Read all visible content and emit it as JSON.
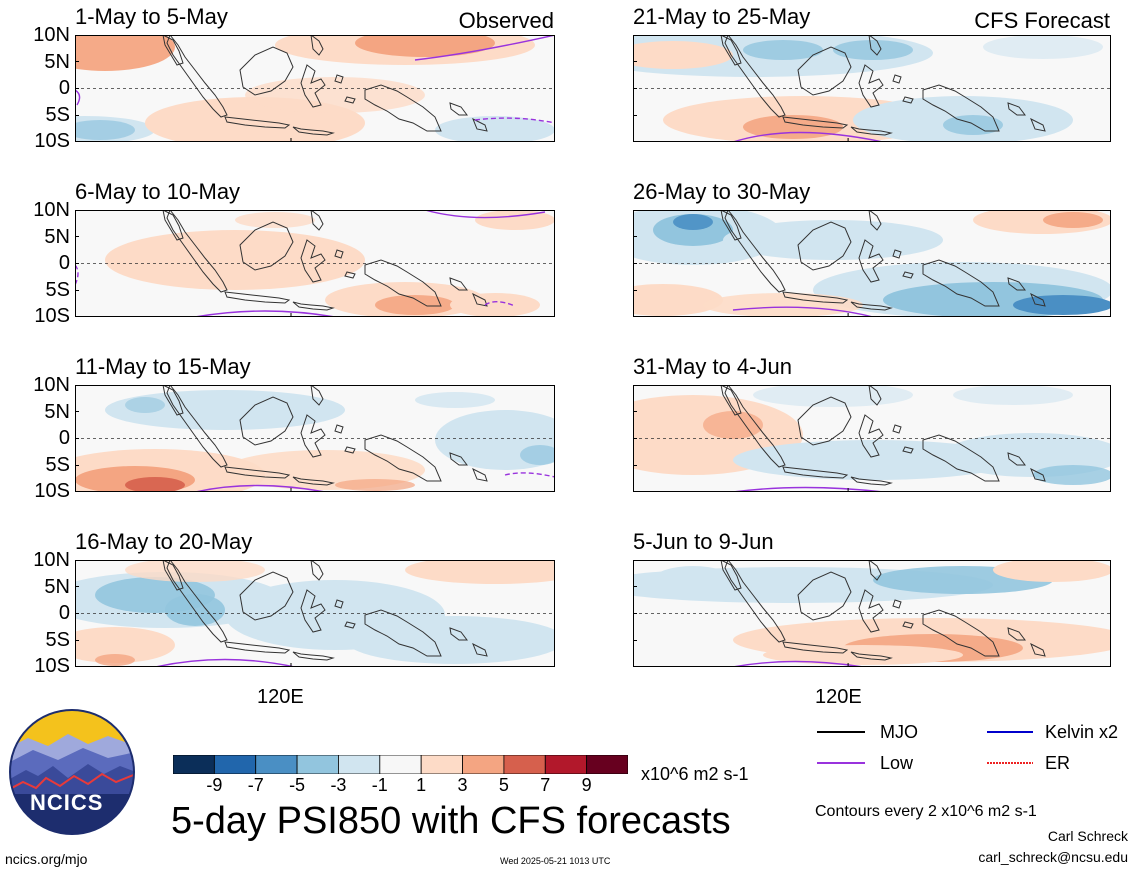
{
  "title": "5-day PSI850 with CFS forecasts",
  "observed_label": "Observed",
  "forecast_label": "CFS Forecast",
  "lat_ticks": [
    "10N",
    "5N",
    "0",
    "5S",
    "10S"
  ],
  "lon_tick": "120E",
  "panels": [
    {
      "title": "1-May to 5-May",
      "type": "observed"
    },
    {
      "title": "6-May to 10-May",
      "type": "observed"
    },
    {
      "title": "11-May to 15-May",
      "type": "observed"
    },
    {
      "title": "16-May to 20-May",
      "type": "observed"
    },
    {
      "title": "21-May to 25-May",
      "type": "forecast"
    },
    {
      "title": "26-May to 30-May",
      "type": "forecast"
    },
    {
      "title": "31-May to 4-Jun",
      "type": "forecast"
    },
    {
      "title": "5-Jun to 9-Jun",
      "type": "forecast"
    }
  ],
  "colorbar": {
    "labels": [
      "-9",
      "-7",
      "-5",
      "-3",
      "-1",
      "1",
      "3",
      "5",
      "7",
      "9"
    ],
    "colors": [
      "#0b2e59",
      "#2166ac",
      "#4a8fc4",
      "#92c5de",
      "#d1e5f0",
      "#f7f7f7",
      "#fddbc7",
      "#f4a582",
      "#d6604d",
      "#b2182b",
      "#67001f"
    ],
    "units": "x10^6 m2 s-1"
  },
  "legend": [
    {
      "label": "MJO",
      "color": "#000000",
      "style": "solid"
    },
    {
      "label": "Kelvin x2",
      "color": "#0000cc",
      "style": "solid"
    },
    {
      "label": "Low",
      "color": "#9933dd",
      "style": "solid"
    },
    {
      "label": "ER",
      "color": "#ee2222",
      "style": "dotted"
    }
  ],
  "contour_note": "Contours every 2 x10^6 m2 s-1",
  "author": "Carl Schreck",
  "email": "carl_schreck@ncsu.edu",
  "website": "ncics.org/mjo",
  "timestamp": "Wed 2025-05-21 1013 UTC",
  "logo_text": "NCICS",
  "colors": {
    "mjo": "#000000",
    "kelvin": "#0000cc",
    "low": "#9933dd",
    "er": "#ee2222",
    "neg1": "#d1e5f0",
    "neg3": "#92c5de",
    "neg5": "#4a8fc4",
    "pos1": "#fddbc7",
    "pos3": "#f4a582",
    "pos5": "#d6604d",
    "pos7": "#b2182b"
  }
}
